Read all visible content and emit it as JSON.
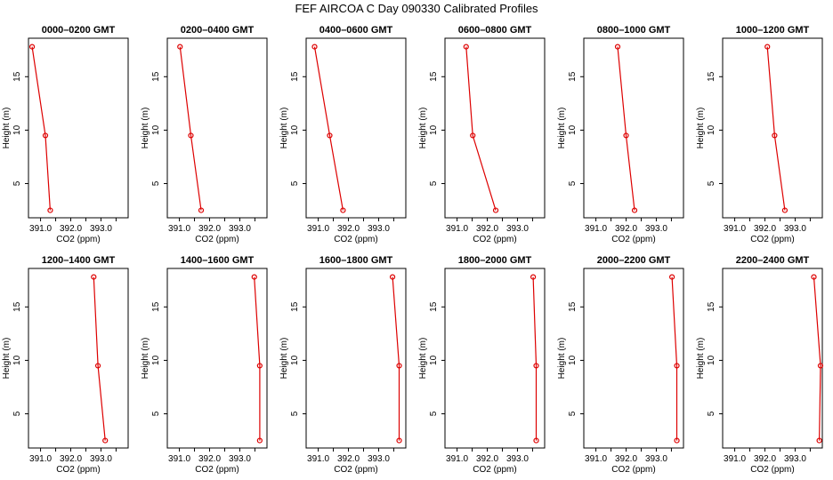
{
  "title": "FEF AIRCOA C  Day 090330  Calibrated Profiles",
  "chart_data": {
    "type": "line",
    "xlabel": "CO2 (ppm)",
    "ylabel": "Height (m)",
    "xticks": [
      "391.0",
      "392.0",
      "393.0"
    ],
    "xtick_values": [
      391.0,
      392.0,
      393.0
    ],
    "yticks": [
      "5",
      "10",
      "15"
    ],
    "ytick_values": [
      5,
      10,
      15
    ],
    "xlim": [
      390.6,
      393.9
    ],
    "ylim": [
      1.8,
      18.6
    ],
    "heights": [
      17.8,
      9.5,
      2.5
    ],
    "line_color": "#dd0000",
    "marker_color": "#dd0000",
    "panels": [
      {
        "title": "0000–0200 GMT",
        "co2": [
          390.72,
          391.16,
          391.32
        ]
      },
      {
        "title": "0200–0400 GMT",
        "co2": [
          391.02,
          391.38,
          391.72
        ]
      },
      {
        "title": "0400–0600 GMT",
        "co2": [
          390.88,
          391.38,
          391.82
        ]
      },
      {
        "title": "0600–0800 GMT",
        "co2": [
          391.3,
          391.52,
          392.28
        ]
      },
      {
        "title": "0800–1000 GMT",
        "co2": [
          391.72,
          392.0,
          392.28
        ]
      },
      {
        "title": "1000–1200 GMT",
        "co2": [
          392.08,
          392.32,
          392.66
        ]
      },
      {
        "title": "1200–1400 GMT",
        "co2": [
          392.76,
          392.9,
          393.14
        ]
      },
      {
        "title": "1400–1600 GMT",
        "co2": [
          393.48,
          393.66,
          393.66
        ]
      },
      {
        "title": "1600–1800 GMT",
        "co2": [
          393.46,
          393.68,
          393.68
        ]
      },
      {
        "title": "1800–2000 GMT",
        "co2": [
          393.52,
          393.62,
          393.62
        ]
      },
      {
        "title": "2000–2200 GMT",
        "co2": [
          393.52,
          393.68,
          393.68
        ]
      },
      {
        "title": "2200–2400 GMT",
        "co2": [
          393.62,
          393.84,
          393.8
        ]
      }
    ]
  }
}
